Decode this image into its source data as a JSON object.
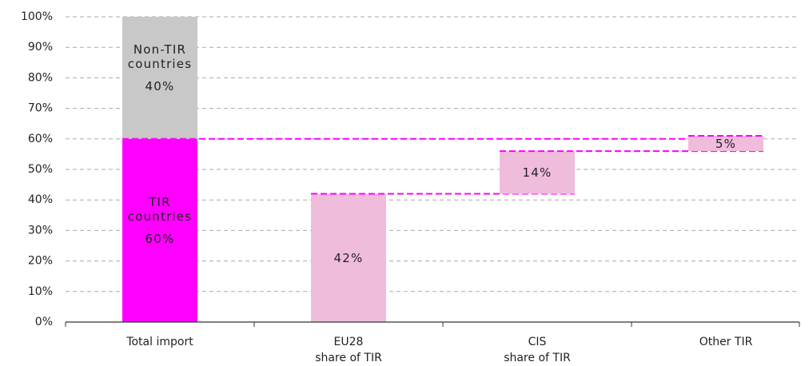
{
  "chart_data": {
    "type": "waterfall",
    "categories": [
      [
        "Total import"
      ],
      [
        "EU28",
        "share of TIR"
      ],
      [
        "CIS",
        "share of TIR"
      ],
      [
        "Other TIR"
      ]
    ],
    "series": [
      {
        "name": "TIR countries",
        "color": "#ff00ff",
        "values": [
          60,
          null,
          null,
          null
        ],
        "value_labels": [
          "60%",
          null,
          null,
          null
        ]
      },
      {
        "name": "Non-TIR countries",
        "color": "#c8c8c8",
        "values": [
          40,
          null,
          null,
          null
        ],
        "value_labels": [
          "40%",
          null,
          null,
          null
        ]
      }
    ],
    "steps": {
      "color": "#f0bcdc",
      "values": [
        null,
        42,
        14,
        5
      ],
      "value_labels": [
        null,
        "42%",
        "14%",
        "5%"
      ]
    },
    "connector_color": "#ff00ff",
    "ylim": [
      0,
      100
    ],
    "yticks": [
      {
        "value": 0,
        "label": "0%"
      },
      {
        "value": 10,
        "label": "10%"
      },
      {
        "value": 20,
        "label": "20%"
      },
      {
        "value": 30,
        "label": "30%"
      },
      {
        "value": 40,
        "label": "40%"
      },
      {
        "value": 50,
        "label": "50%"
      },
      {
        "value": 60,
        "label": "60%"
      },
      {
        "value": 70,
        "label": "70%"
      },
      {
        "value": 80,
        "label": "80%"
      },
      {
        "value": 90,
        "label": "90%"
      },
      {
        "value": 100,
        "label": "100%"
      }
    ],
    "grid": true
  }
}
